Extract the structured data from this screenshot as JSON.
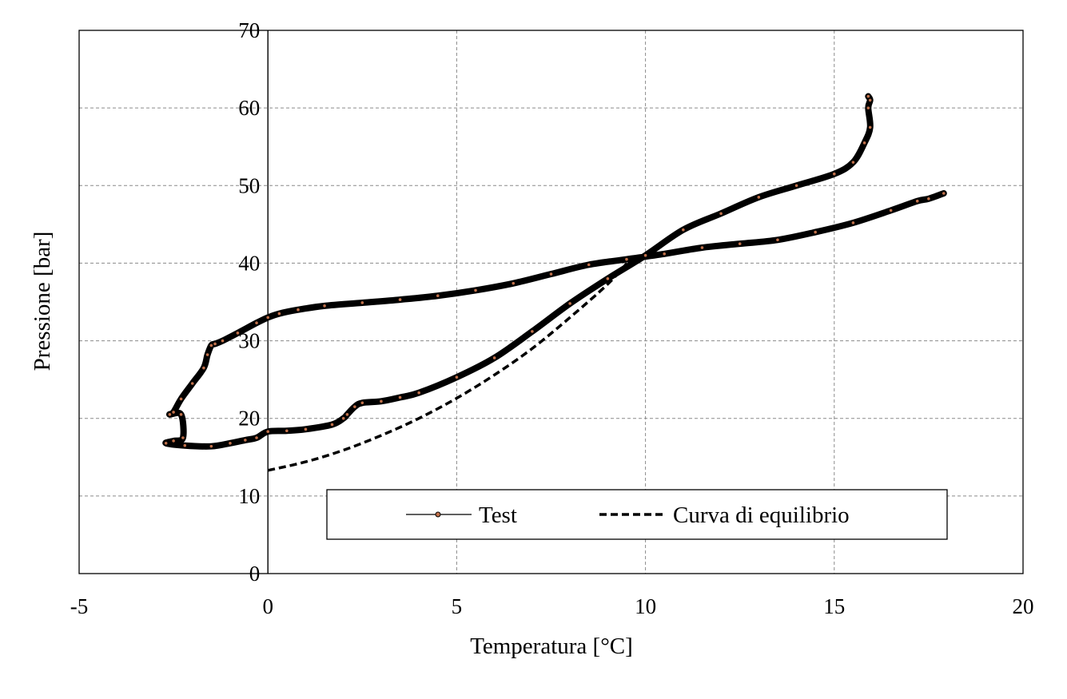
{
  "chart_data": {
    "type": "scatter",
    "title": "",
    "xlabel": "Temperatura [°C]",
    "ylabel": "Pressione [bar]",
    "xlim": [
      -5,
      20
    ],
    "ylim": [
      0,
      70
    ],
    "x_ticks": [
      -5,
      0,
      5,
      10,
      15,
      20
    ],
    "y_ticks": [
      0,
      10,
      20,
      30,
      40,
      50,
      60,
      70
    ],
    "x_tick_labels": [
      "-5",
      "0",
      "5",
      "10",
      "15",
      "20"
    ],
    "y_tick_labels": [
      "0",
      "10",
      "20",
      "30",
      "40",
      "50",
      "60",
      "70"
    ],
    "grid": true,
    "legend_position": "bottom-center",
    "series": [
      {
        "name": "Test",
        "style": "thick solid line with small circle markers",
        "color": "#000000",
        "marker_color": "#c0704a",
        "x": [
          17.9,
          17.5,
          17.2,
          16.5,
          15.5,
          14.5,
          13.5,
          12.5,
          11.5,
          10.5,
          9.5,
          8.5,
          7.5,
          6.5,
          5.5,
          4.5,
          3.5,
          2.5,
          1.5,
          0.8,
          0.3,
          0.0,
          -0.3,
          -0.8,
          -1.2,
          -1.4,
          -1.5,
          -1.6,
          -1.7,
          -2.0,
          -2.3,
          -2.5,
          -2.6,
          -2.3,
          -2.25,
          -2.5,
          -2.7,
          -2.2,
          -1.5,
          -1.0,
          -0.6,
          -0.3,
          0.0,
          0.5,
          1.0,
          1.7,
          2.0,
          2.1,
          2.3,
          2.5,
          3.0,
          3.5,
          4.0,
          5.0,
          6.0,
          7.0,
          8.0,
          9.0,
          10.0,
          11.0,
          12.0,
          13.0,
          14.0,
          15.0,
          15.5,
          15.8,
          15.95,
          15.9,
          15.95,
          15.9
        ],
        "y": [
          49.0,
          48.3,
          48.0,
          46.8,
          45.2,
          44.0,
          43.0,
          42.5,
          42.0,
          41.2,
          40.5,
          39.8,
          38.6,
          37.4,
          36.5,
          35.8,
          35.3,
          34.9,
          34.5,
          34.0,
          33.5,
          33.0,
          32.3,
          31.0,
          30.0,
          29.6,
          29.4,
          28.2,
          26.5,
          24.5,
          22.5,
          20.8,
          20.5,
          20.5,
          17.5,
          17.1,
          16.8,
          16.5,
          16.4,
          16.8,
          17.2,
          17.5,
          18.3,
          18.4,
          18.6,
          19.2,
          20.0,
          20.5,
          21.5,
          22.0,
          22.2,
          22.7,
          23.3,
          25.3,
          27.8,
          31.2,
          34.8,
          38.0,
          41.0,
          44.3,
          46.4,
          48.5,
          50.0,
          51.5,
          53.0,
          55.5,
          57.5,
          60.0,
          61.0,
          61.5
        ]
      },
      {
        "name": "Curva di equilibrio",
        "style": "dashed",
        "color": "#000000",
        "x": [
          0.0,
          1.0,
          2.0,
          3.0,
          4.0,
          5.0,
          6.0,
          7.0,
          8.0,
          9.0,
          9.6
        ],
        "y": [
          13.3,
          14.4,
          15.9,
          17.8,
          20.0,
          22.6,
          25.6,
          29.0,
          33.0,
          37.3,
          40.5
        ]
      }
    ]
  }
}
